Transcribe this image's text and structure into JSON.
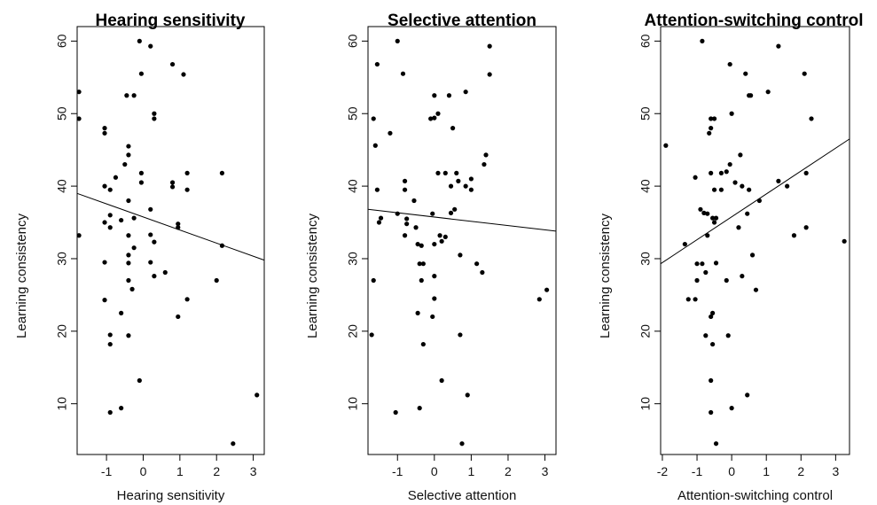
{
  "chart_data": [
    {
      "type": "scatter",
      "title": "Hearing sensitivity",
      "xlabel": "Hearing sensitivity",
      "ylabel": "Learning consistency",
      "xlim": [
        -1.8,
        3.3
      ],
      "ylim": [
        3.0,
        62.0
      ],
      "xticks": [
        -1,
        0,
        1,
        2,
        3
      ],
      "yticks": [
        10,
        20,
        30,
        40,
        50,
        60
      ],
      "fit_line": {
        "x": [
          -1.8,
          3.3
        ],
        "y": [
          39.0,
          29.8
        ]
      },
      "points": [
        [
          -1.75,
          53.0
        ],
        [
          -1.75,
          49.3
        ],
        [
          -1.75,
          33.2
        ],
        [
          -1.05,
          48.0
        ],
        [
          -1.05,
          47.3
        ],
        [
          -1.05,
          40.0
        ],
        [
          -1.05,
          35.0
        ],
        [
          -1.05,
          29.5
        ],
        [
          -1.05,
          24.3
        ],
        [
          -0.9,
          39.5
        ],
        [
          -0.9,
          36.0
        ],
        [
          -0.9,
          34.3
        ],
        [
          -0.9,
          19.5
        ],
        [
          -0.9,
          18.2
        ],
        [
          -0.9,
          8.8
        ],
        [
          -0.75,
          41.2
        ],
        [
          -0.6,
          35.3
        ],
        [
          -0.6,
          22.5
        ],
        [
          -0.6,
          9.4
        ],
        [
          -0.5,
          43.0
        ],
        [
          -0.45,
          52.5
        ],
        [
          -0.4,
          45.5
        ],
        [
          -0.4,
          44.3
        ],
        [
          -0.4,
          38.0
        ],
        [
          -0.4,
          33.2
        ],
        [
          -0.4,
          30.5
        ],
        [
          -0.4,
          29.4
        ],
        [
          -0.4,
          27.0
        ],
        [
          -0.4,
          19.4
        ],
        [
          -0.25,
          52.5
        ],
        [
          -0.25,
          35.6
        ],
        [
          -0.25,
          31.5
        ],
        [
          -0.3,
          25.8
        ],
        [
          -0.1,
          60.0
        ],
        [
          -0.05,
          55.5
        ],
        [
          -0.05,
          41.8
        ],
        [
          -0.05,
          40.5
        ],
        [
          -0.1,
          13.2
        ],
        [
          0.2,
          59.3
        ],
        [
          0.2,
          36.8
        ],
        [
          0.2,
          33.3
        ],
        [
          0.2,
          29.5
        ],
        [
          0.3,
          50.0
        ],
        [
          0.3,
          49.3
        ],
        [
          0.3,
          32.3
        ],
        [
          0.3,
          27.6
        ],
        [
          0.6,
          28.1
        ],
        [
          0.8,
          56.8
        ],
        [
          0.8,
          40.5
        ],
        [
          0.8,
          39.9
        ],
        [
          0.95,
          34.8
        ],
        [
          0.95,
          34.3
        ],
        [
          0.95,
          22.0
        ],
        [
          1.1,
          55.4
        ],
        [
          1.2,
          41.8
        ],
        [
          1.2,
          39.5
        ],
        [
          1.2,
          24.4
        ],
        [
          2.0,
          27.0
        ],
        [
          2.15,
          41.8
        ],
        [
          2.15,
          31.8
        ],
        [
          2.45,
          4.5
        ],
        [
          3.1,
          11.2
        ]
      ]
    },
    {
      "type": "scatter",
      "title": "Selective attention",
      "xlabel": "Selective attention",
      "ylabel": "Learning consistency",
      "xlim": [
        -1.8,
        3.3
      ],
      "ylim": [
        3.0,
        62.0
      ],
      "xticks": [
        -1,
        0,
        1,
        2,
        3
      ],
      "yticks": [
        10,
        20,
        30,
        40,
        50,
        60
      ],
      "fit_line": {
        "x": [
          -1.8,
          3.3
        ],
        "y": [
          36.8,
          33.8
        ]
      },
      "points": [
        [
          -1.65,
          49.3
        ],
        [
          -1.6,
          45.6
        ],
        [
          -1.65,
          27.0
        ],
        [
          -1.7,
          19.5
        ],
        [
          -1.55,
          56.8
        ],
        [
          -1.55,
          39.5
        ],
        [
          -1.5,
          35.0
        ],
        [
          -1.45,
          35.6
        ],
        [
          -1.2,
          47.3
        ],
        [
          -1.0,
          60.0
        ],
        [
          -1.0,
          36.2
        ],
        [
          -1.05,
          8.8
        ],
        [
          -0.85,
          55.5
        ],
        [
          -0.8,
          40.7
        ],
        [
          -0.8,
          39.5
        ],
        [
          -0.75,
          35.5
        ],
        [
          -0.75,
          34.8
        ],
        [
          -0.8,
          33.2
        ],
        [
          -0.55,
          38.0
        ],
        [
          -0.5,
          34.3
        ],
        [
          -0.45,
          32.0
        ],
        [
          -0.45,
          22.5
        ],
        [
          -0.35,
          31.8
        ],
        [
          -0.4,
          29.3
        ],
        [
          -0.3,
          29.3
        ],
        [
          -0.35,
          27.0
        ],
        [
          -0.3,
          18.2
        ],
        [
          -0.4,
          9.4
        ],
        [
          -0.1,
          49.3
        ],
        [
          0.0,
          52.5
        ],
        [
          0.0,
          49.4
        ],
        [
          -0.05,
          36.2
        ],
        [
          0.0,
          32.0
        ],
        [
          0.0,
          27.6
        ],
        [
          0.0,
          24.5
        ],
        [
          -0.05,
          22.0
        ],
        [
          0.1,
          50.0
        ],
        [
          0.1,
          41.8
        ],
        [
          0.15,
          33.2
        ],
        [
          0.2,
          32.4
        ],
        [
          0.2,
          13.2
        ],
        [
          0.3,
          41.8
        ],
        [
          0.3,
          33.0
        ],
        [
          0.4,
          52.5
        ],
        [
          0.45,
          40.0
        ],
        [
          0.45,
          36.3
        ],
        [
          0.5,
          48.0
        ],
        [
          0.55,
          36.8
        ],
        [
          0.6,
          41.8
        ],
        [
          0.65,
          40.7
        ],
        [
          0.7,
          30.5
        ],
        [
          0.7,
          19.5
        ],
        [
          0.75,
          4.5
        ],
        [
          0.85,
          53.0
        ],
        [
          0.85,
          40.0
        ],
        [
          0.9,
          11.2
        ],
        [
          1.0,
          41.0
        ],
        [
          1.0,
          39.5
        ],
        [
          1.15,
          29.3
        ],
        [
          1.3,
          28.1
        ],
        [
          1.35,
          43.0
        ],
        [
          1.4,
          44.3
        ],
        [
          1.5,
          59.3
        ],
        [
          1.5,
          55.4
        ],
        [
          2.85,
          24.4
        ],
        [
          3.05,
          25.7
        ]
      ]
    },
    {
      "type": "scatter",
      "title": "Attention-switching control",
      "xlabel": "Attention-switching control",
      "ylabel": "Learning consistency",
      "xlim": [
        -2.05,
        3.4
      ],
      "ylim": [
        3.0,
        62.0
      ],
      "xticks": [
        -2,
        -1,
        0,
        1,
        2,
        3
      ],
      "yticks": [
        10,
        20,
        30,
        40,
        50,
        60
      ],
      "fit_line": {
        "x": [
          -2.05,
          3.4
        ],
        "y": [
          29.3,
          46.5
        ]
      },
      "points": [
        [
          -1.9,
          45.6
        ],
        [
          -1.35,
          32.0
        ],
        [
          -1.25,
          24.4
        ],
        [
          -1.05,
          24.4
        ],
        [
          -1.05,
          41.2
        ],
        [
          -1.0,
          29.3
        ],
        [
          -1.0,
          27.0
        ],
        [
          -0.9,
          36.8
        ],
        [
          -0.85,
          29.3
        ],
        [
          -0.85,
          60.0
        ],
        [
          -0.8,
          36.3
        ],
        [
          -0.75,
          28.1
        ],
        [
          -0.75,
          19.4
        ],
        [
          -0.7,
          36.2
        ],
        [
          -0.7,
          33.2
        ],
        [
          -0.65,
          47.3
        ],
        [
          -0.6,
          48.0
        ],
        [
          -0.6,
          49.3
        ],
        [
          -0.6,
          41.8
        ],
        [
          -0.6,
          22.0
        ],
        [
          -0.6,
          13.2
        ],
        [
          -0.6,
          8.8
        ],
        [
          -0.55,
          35.6
        ],
        [
          -0.55,
          18.2
        ],
        [
          -0.55,
          22.5
        ],
        [
          -0.5,
          49.3
        ],
        [
          -0.5,
          39.5
        ],
        [
          -0.5,
          35.0
        ],
        [
          -0.45,
          35.6
        ],
        [
          -0.45,
          29.4
        ],
        [
          -0.45,
          4.5
        ],
        [
          -0.3,
          41.8
        ],
        [
          -0.3,
          39.5
        ],
        [
          -0.15,
          42.0
        ],
        [
          -0.15,
          27.0
        ],
        [
          -0.1,
          19.4
        ],
        [
          -0.05,
          56.8
        ],
        [
          -0.05,
          43.0
        ],
        [
          0.0,
          50.0
        ],
        [
          0.0,
          9.4
        ],
        [
          0.1,
          40.5
        ],
        [
          0.2,
          34.3
        ],
        [
          0.25,
          44.3
        ],
        [
          0.3,
          40.0
        ],
        [
          0.3,
          27.6
        ],
        [
          0.4,
          55.5
        ],
        [
          0.45,
          36.2
        ],
        [
          0.45,
          11.2
        ],
        [
          0.5,
          52.5
        ],
        [
          0.55,
          52.5
        ],
        [
          0.5,
          39.5
        ],
        [
          0.6,
          30.5
        ],
        [
          0.7,
          25.7
        ],
        [
          0.8,
          38.0
        ],
        [
          1.05,
          53.0
        ],
        [
          1.35,
          59.3
        ],
        [
          1.35,
          40.7
        ],
        [
          1.6,
          40.0
        ],
        [
          1.8,
          33.2
        ],
        [
          2.1,
          55.5
        ],
        [
          2.15,
          41.8
        ],
        [
          2.15,
          34.3
        ],
        [
          2.3,
          49.3
        ],
        [
          3.25,
          32.4
        ]
      ]
    }
  ]
}
